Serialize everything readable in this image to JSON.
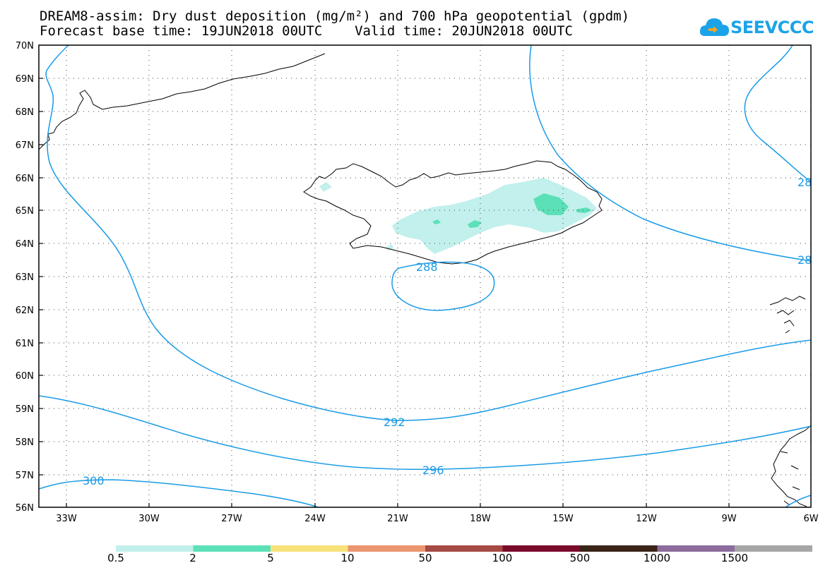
{
  "title": {
    "line1": "DREAM8-assim: Dry dust deposition (mg/m²) and 700 hPa geopotential (gpdm)",
    "line2": "Forecast base time: 19JUN2018 00UTC    Valid time: 20JUN2018 00UTC"
  },
  "logo": {
    "text": "SEEVCCC",
    "icon": "cloud-icon",
    "color": "#1aa3e8"
  },
  "map": {
    "lat_labels": [
      "70N",
      "69N",
      "68N",
      "67N",
      "66N",
      "65N",
      "64N",
      "63N",
      "62N",
      "61N",
      "60N",
      "59N",
      "58N",
      "57N",
      "56N"
    ],
    "lon_labels": [
      "33W",
      "30W",
      "27W",
      "24W",
      "21W",
      "18W",
      "15W",
      "12W",
      "9W",
      "6W"
    ],
    "contour_color": "#1a9be6",
    "contour_labels": [
      "288",
      "292",
      "296",
      "300",
      "28",
      "28"
    ],
    "coastline_color": "#000000"
  },
  "colorbar": {
    "labels": [
      "0.5",
      "2",
      "5",
      "10",
      "50",
      "100",
      "500",
      "1000",
      "1500"
    ],
    "colors": [
      "#c2f0ec",
      "#5ce0b8",
      "#f7e27a",
      "#ec9670",
      "#a54a45",
      "#7a0a2a",
      "#3a2418",
      "#8c6c9c",
      "#a6a6a6"
    ]
  }
}
